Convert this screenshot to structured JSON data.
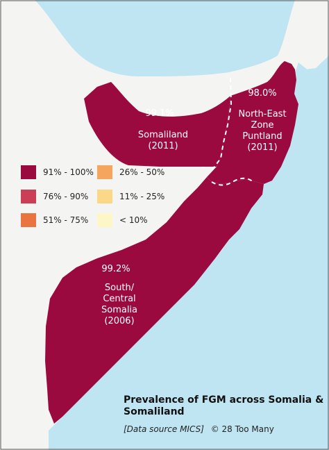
{
  "colors": {
    "sea": "#bfe4f2",
    "land": "#f4f4f2",
    "region_fill": "#9b0a3e",
    "border_dash": "#ffffff"
  },
  "regions": [
    {
      "name": "Somaliland",
      "percent": "99.1%",
      "label": "Somaliland\n(2011)"
    },
    {
      "name": "North-East Zone Puntland",
      "percent": "98.0%",
      "label": "North-East\nZone\nPuntland\n(2011)"
    },
    {
      "name": "South/Central Somalia",
      "percent": "99.2%",
      "label": "South/\nCentral\nSomalia\n(2006)"
    }
  ],
  "legend": [
    {
      "label": "91% - 100%",
      "color": "#9b0a3e"
    },
    {
      "label": "76% - 90%",
      "color": "#cc3e55"
    },
    {
      "label": "51% - 75%",
      "color": "#ea7440"
    },
    {
      "label": "26% - 50%",
      "color": "#f5a55d"
    },
    {
      "label": "11% - 25%",
      "color": "#fbd788"
    },
    {
      "label": "< 10%",
      "color": "#fdf6c7"
    }
  ],
  "title": "Prevalence of FGM across Somalia & Somaliland",
  "source": {
    "italic": "[Data source MICS]",
    "credit": "© 28 Too Many"
  }
}
